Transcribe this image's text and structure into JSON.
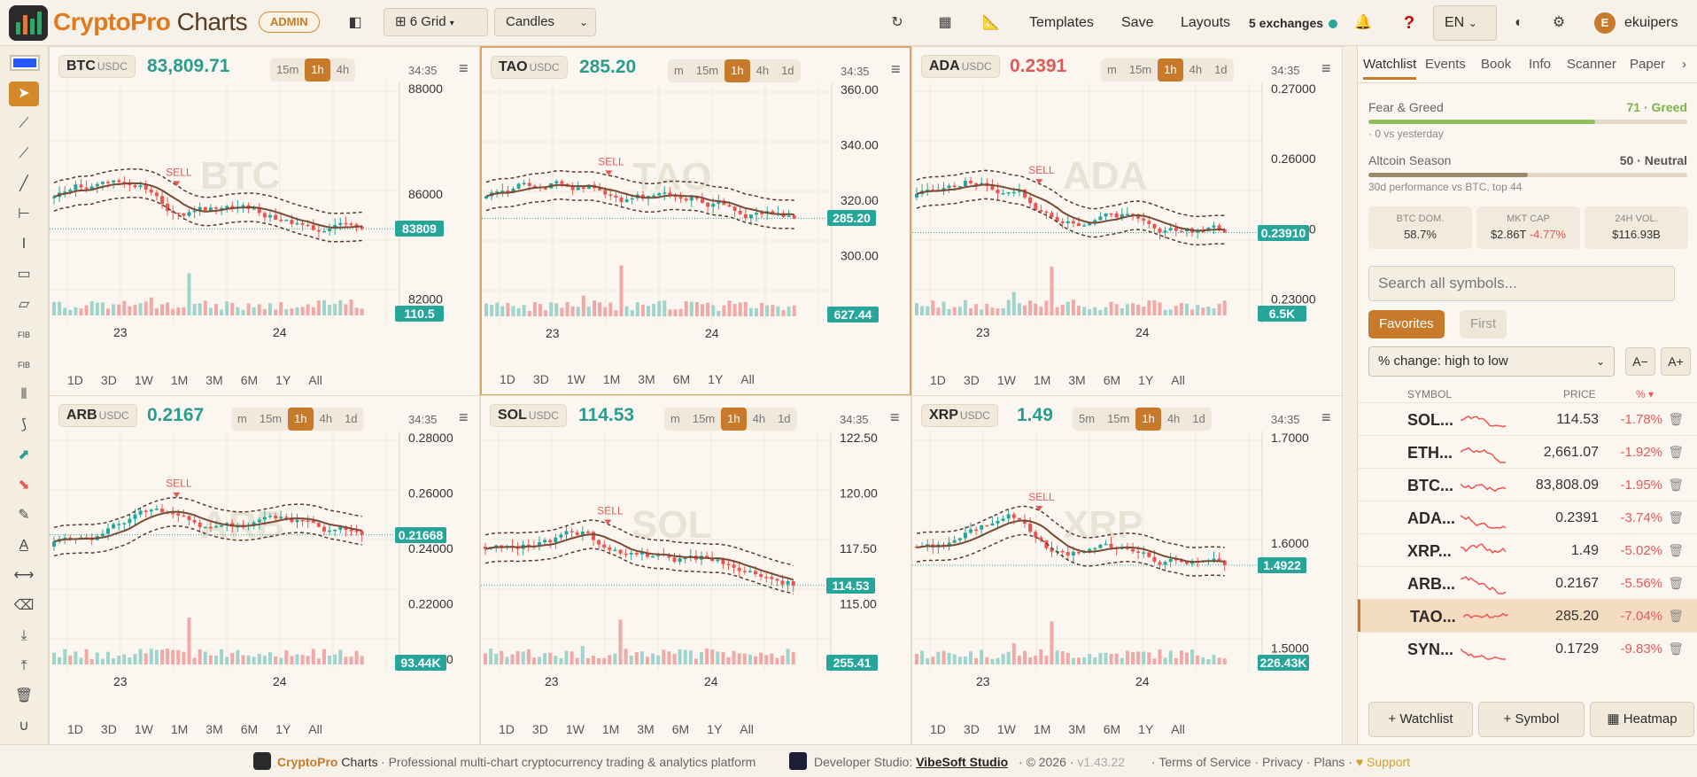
{
  "app": {
    "brand_a": "CryptoPro",
    "brand_b": " Charts",
    "badge": "ADMIN"
  },
  "header": {
    "grid_label": "6 Grid",
    "chart_type": "Candles",
    "templates": "Templates",
    "save": "Save",
    "layouts": "Layouts",
    "exchanges": "5 exchanges",
    "lang": "EN",
    "user": "ekuipers",
    "user_initial": "E"
  },
  "panels": [
    {
      "symbol": "BTC",
      "quote": "USDC",
      "price": "83,809.71",
      "price_color": "g",
      "tfs": [
        "15m",
        "1h",
        "4h"
      ],
      "active_tf": "1h",
      "timer": "34:35",
      "watermark": "BTC",
      "last_label": "83809",
      "vol_label": "110.5",
      "axis": [
        "88000",
        "86000",
        "82000"
      ],
      "dates": [
        "23",
        "24"
      ],
      "ranges": [
        "1D",
        "3D",
        "1W",
        "1M",
        "3M",
        "6M",
        "1Y",
        "All"
      ],
      "signal": "SELL",
      "selected": false,
      "seed": 1
    },
    {
      "symbol": "TAO",
      "quote": "USDC",
      "price": "285.20",
      "price_color": "g",
      "tfs": [
        "m",
        "15m",
        "1h",
        "4h",
        "1d"
      ],
      "active_tf": "1h",
      "timer": "34:35",
      "watermark": "TAO",
      "last_label": "285.20",
      "vol_label": "627.44",
      "axis": [
        "360.00",
        "340.00",
        "320.00",
        "300.00",
        "280.00"
      ],
      "dates": [
        "23",
        "24"
      ],
      "ranges": [
        "1D",
        "3D",
        "1W",
        "1M",
        "3M",
        "6M",
        "1Y",
        "All"
      ],
      "signal": "SELL",
      "selected": true,
      "seed": 2
    },
    {
      "symbol": "ADA",
      "quote": "USDC",
      "price": "0.2391",
      "price_color": "r",
      "tfs": [
        "m",
        "15m",
        "1h",
        "4h",
        "1d"
      ],
      "active_tf": "1h",
      "timer": "34:35",
      "watermark": "ADA",
      "last_label": "0.23910",
      "vol_label": "6.5K",
      "axis": [
        "0.27000",
        "0.26000",
        "0.25000",
        "0.23000"
      ],
      "dates": [
        "23",
        "24"
      ],
      "ranges": [
        "1D",
        "3D",
        "1W",
        "1M",
        "3M",
        "6M",
        "1Y",
        "All"
      ],
      "signal": "SELL",
      "selected": false,
      "seed": 3
    },
    {
      "symbol": "ARB",
      "quote": "USDC",
      "price": "0.2167",
      "price_color": "g",
      "tfs": [
        "m",
        "15m",
        "1h",
        "4h",
        "1d"
      ],
      "active_tf": "1h",
      "timer": "34:35",
      "watermark": "ARB",
      "last_label": "0.21668",
      "vol_label": "93.44K",
      "axis": [
        "0.28000",
        "0.26000",
        "0.24000",
        "0.22000",
        "0.20000"
      ],
      "dates": [
        "23",
        "24"
      ],
      "ranges": [
        "1D",
        "3D",
        "1W",
        "1M",
        "3M",
        "6M",
        "1Y",
        "All"
      ],
      "signal": "SELL",
      "selected": false,
      "seed": 4
    },
    {
      "symbol": "SOL",
      "quote": "USDC",
      "price": "114.53",
      "price_color": "g",
      "tfs": [
        "m",
        "15m",
        "1h",
        "4h",
        "1d"
      ],
      "active_tf": "1h",
      "timer": "34:35",
      "watermark": "SOL",
      "last_label": "114.53",
      "vol_label": "255.41",
      "axis": [
        "122.50",
        "120.00",
        "117.50",
        "115.00",
        "112.50"
      ],
      "dates": [
        "23",
        "24"
      ],
      "ranges": [
        "1D",
        "3D",
        "1W",
        "1M",
        "3M",
        "6M",
        "1Y",
        "All"
      ],
      "signal": "SELL",
      "selected": false,
      "seed": 5
    },
    {
      "symbol": "XRP",
      "quote": "USDC",
      "price": "1.49",
      "price_color": "g",
      "tfs": [
        "5m",
        "15m",
        "1h",
        "4h",
        "1d"
      ],
      "active_tf": "1h",
      "timer": "34:35",
      "watermark": "XRP",
      "last_label": "1.4922",
      "vol_label": "226.43K",
      "axis": [
        "1.7000",
        "1.6000",
        "1.5000"
      ],
      "dates": [
        "23",
        "24"
      ],
      "ranges": [
        "1D",
        "3D",
        "1W",
        "1M",
        "3M",
        "6M",
        "1Y",
        "All"
      ],
      "signal": "SELL",
      "selected": false,
      "seed": 6
    }
  ],
  "sidebar": {
    "tabs": [
      "Watchlist",
      "Events",
      "Book",
      "Info",
      "Scanner",
      "Paper"
    ],
    "fear_greed": {
      "label": "Fear & Greed",
      "value": "71 · Greed",
      "sub": "· 0 vs yesterday",
      "level": 0.71,
      "color": "#8fc15a"
    },
    "altcoin": {
      "label": "Altcoin Season",
      "value": "50 · Neutral",
      "sub": "30d performance vs BTC, top 44",
      "level": 0.5,
      "color": "#9a8a6e"
    },
    "stats": [
      {
        "k": "BTC DOM.",
        "v": "58.7%",
        "extra": ""
      },
      {
        "k": "MKT CAP",
        "v": "$2.86T",
        "extra": "-4.77%"
      },
      {
        "k": "24H VOL.",
        "v": "$116.93B",
        "extra": ""
      }
    ],
    "search_placeholder": "Search all symbols...",
    "pills": [
      "Favorites",
      "First"
    ],
    "sort": "% change: high to low",
    "font_dec": "A−",
    "font_inc": "A+",
    "cols": {
      "symbol": "SYMBOL",
      "price": "PRICE",
      "pct": "% ▾"
    },
    "rows": [
      {
        "s": "SOL...",
        "p": "114.53",
        "c": "-1.78%"
      },
      {
        "s": "ETH...",
        "p": "2,661.07",
        "c": "-1.92%"
      },
      {
        "s": "BTC...",
        "p": "83,808.09",
        "c": "-1.95%"
      },
      {
        "s": "ADA...",
        "p": "0.2391",
        "c": "-3.74%"
      },
      {
        "s": "XRP...",
        "p": "1.49",
        "c": "-5.02%"
      },
      {
        "s": "ARB...",
        "p": "0.2167",
        "c": "-5.56%"
      },
      {
        "s": "TAO...",
        "p": "285.20",
        "c": "-7.04%",
        "hl": true
      },
      {
        "s": "SYN...",
        "p": "0.1729",
        "c": "-9.83%"
      }
    ],
    "buttons": [
      "+ Watchlist",
      "+ Symbol",
      "▦ Heatmap"
    ]
  },
  "footer": {
    "brand_a": "CryptoPro",
    "brand_b": " Charts",
    "tagline": "Professional multi-chart cryptocurrency trading & analytics platform",
    "dev": "Developer Studio:",
    "studio": "VibeSoft Studio",
    "copy": "© 2026",
    "ver": "v1.43.22",
    "tos": "Terms of Service",
    "privacy": "Privacy",
    "plans": "Plans",
    "support": "♥ Support"
  }
}
